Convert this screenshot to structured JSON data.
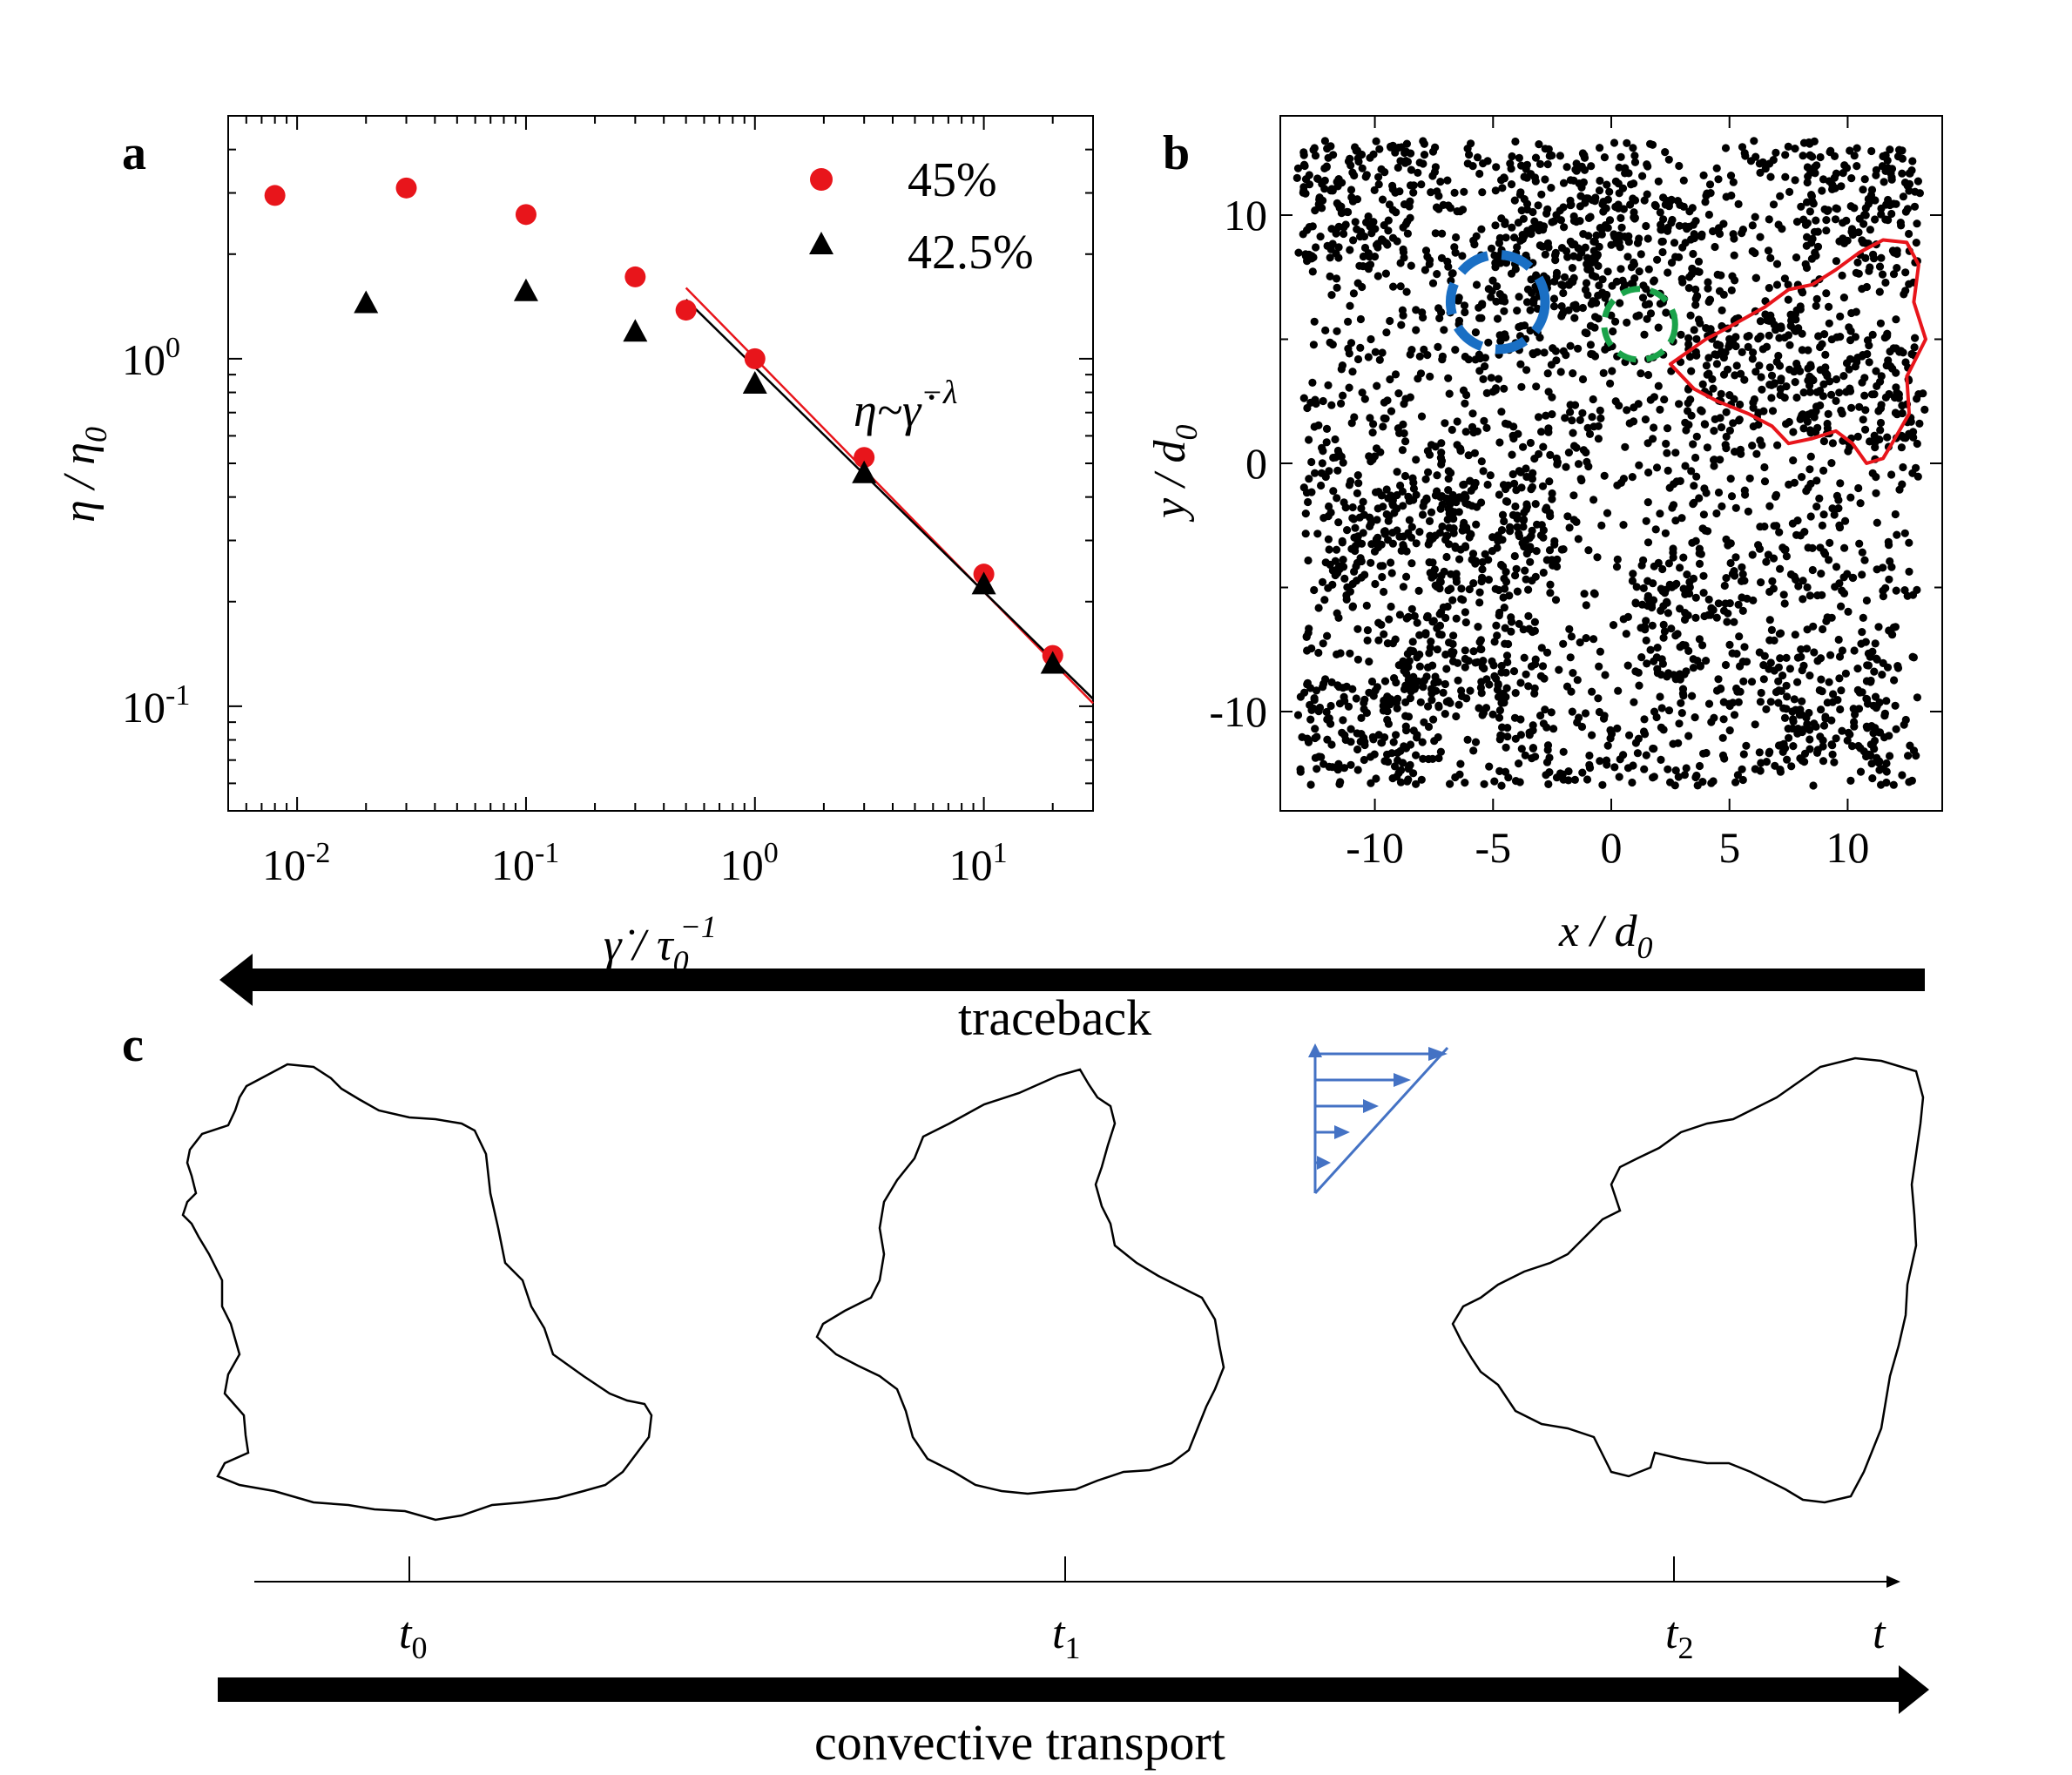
{
  "panel_labels": {
    "a": "a",
    "b": "b",
    "c": "c"
  },
  "chart_data": [
    {
      "panel": "a",
      "type": "scatter",
      "scale": "log-log",
      "xlim": [
        0.005,
        30
      ],
      "ylim": [
        0.05,
        5
      ],
      "x_ticks": [
        {
          "value": 0.01,
          "base": "10",
          "exp": "-2"
        },
        {
          "value": 0.1,
          "base": "10",
          "exp": "-1"
        },
        {
          "value": 1,
          "base": "10",
          "exp": "0"
        },
        {
          "value": 10,
          "base": "10",
          "exp": "1"
        }
      ],
      "y_ticks": [
        {
          "value": 0.1,
          "base": "10",
          "exp": "-1"
        },
        {
          "value": 1,
          "base": "10",
          "exp": "0"
        }
      ],
      "xlabel": {
        "main": "γ̇ / τ",
        "sub": "0",
        "sup": "−1"
      },
      "ylabel": {
        "main": "η / η",
        "sub": "0"
      },
      "annotation": {
        "main": "η~γ̇",
        "sup": "−λ"
      },
      "series": [
        {
          "name": "45%",
          "marker": "circle",
          "color": "#e8151b",
          "x": [
            0.008,
            0.03,
            0.1,
            0.3,
            0.5,
            1,
            3,
            10,
            20
          ],
          "y": [
            2.95,
            3.1,
            2.6,
            1.72,
            1.38,
            1.0,
            0.52,
            0.24,
            0.14
          ]
        },
        {
          "name": "42.5%",
          "marker": "triangle",
          "color": "#000000",
          "x": [
            0.02,
            0.1,
            0.3,
            1,
            3,
            10,
            20
          ],
          "y": [
            1.45,
            1.57,
            1.2,
            0.85,
            0.47,
            0.225,
            0.133
          ]
        }
      ],
      "fits": [
        {
          "color": "#e8151b",
          "x": [
            0.5,
            30
          ],
          "y": [
            1.6,
            0.102
          ]
        },
        {
          "color": "#000000",
          "x": [
            0.5,
            30
          ],
          "y": [
            1.48,
            0.105
          ]
        }
      ]
    },
    {
      "panel": "b",
      "type": "scatter",
      "xlim": [
        -14,
        14
      ],
      "ylim": [
        -14,
        14
      ],
      "x_ticks": [
        "-10",
        "-5",
        "0",
        "5",
        "10"
      ],
      "y_ticks": [
        "-10",
        "0",
        "10"
      ],
      "xlabel": {
        "main": "x / d",
        "sub": "0"
      },
      "ylabel": {
        "main": "y / d",
        "sub": "0"
      },
      "particle_count": 3200,
      "particle_color": "#000000",
      "highlights": [
        {
          "shape": "dashed-circle",
          "color": "#1a6fc4",
          "center": [
            -4.8,
            6.5
          ],
          "radius": 2.0
        },
        {
          "shape": "dashed-circle",
          "color": "#1aa34a",
          "center": [
            1.2,
            5.6
          ],
          "radius": 1.5
        },
        {
          "shape": "closed-contour",
          "color": "#e8151b",
          "points": [
            [
              2.5,
              4.0
            ],
            [
              4.0,
              5.0
            ],
            [
              5.0,
              5.5
            ],
            [
              6.5,
              6.3
            ],
            [
              7.5,
              7.0
            ],
            [
              8.5,
              7.2
            ],
            [
              9.5,
              7.8
            ],
            [
              10.5,
              8.5
            ],
            [
              11.5,
              9.0
            ],
            [
              12.5,
              8.9
            ],
            [
              13.0,
              8.0
            ],
            [
              12.8,
              6.5
            ],
            [
              13.3,
              5.0
            ],
            [
              12.5,
              3.5
            ],
            [
              12.6,
              2.0
            ],
            [
              12.0,
              1.0
            ],
            [
              11.5,
              0.2
            ],
            [
              10.8,
              0.0
            ],
            [
              10.2,
              0.8
            ],
            [
              9.5,
              1.3
            ],
            [
              8.5,
              1.0
            ],
            [
              7.5,
              0.8
            ],
            [
              6.8,
              1.5
            ],
            [
              5.8,
              2.0
            ],
            [
              4.5,
              2.5
            ],
            [
              3.5,
              3.0
            ],
            [
              2.5,
              4.0
            ]
          ]
        }
      ]
    }
  ],
  "panel_c": {
    "traceback_label": "traceback",
    "transport_label": "convective transport",
    "time_axis_label": "t",
    "time_marks": [
      {
        "main": "t",
        "sub": "0"
      },
      {
        "main": "t",
        "sub": "1"
      },
      {
        "main": "t",
        "sub": "2"
      }
    ],
    "shear_arrows": 5,
    "shear_color": "#4472c4"
  }
}
